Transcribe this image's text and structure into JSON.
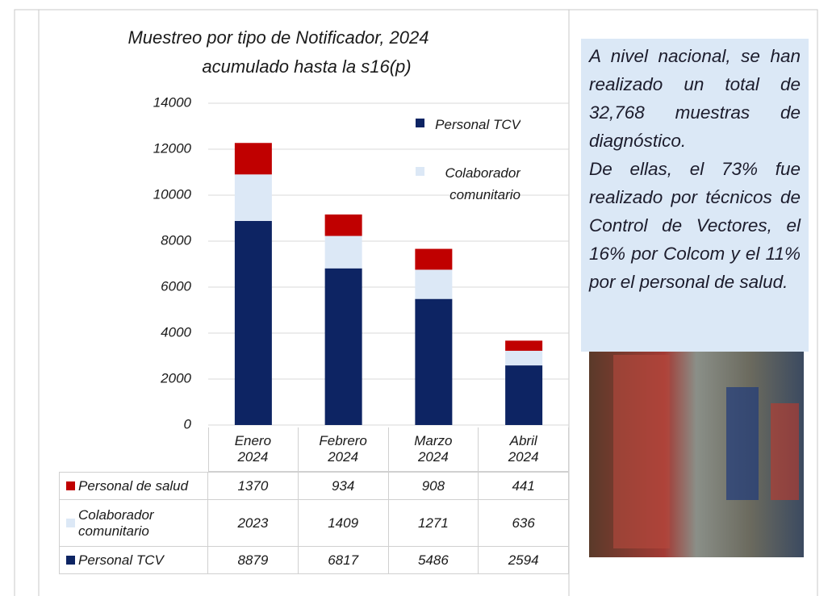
{
  "chart_data": {
    "type": "stacked_bar",
    "title": "Muestreo por tipo de Notificador, 2024",
    "subtitle": "acumulado hasta la s16(p)",
    "categories": [
      "Enero 2024",
      "Febrero 2024",
      "Marzo 2024",
      "Abril 2024"
    ],
    "series": [
      {
        "name": "Personal TCV",
        "color": "#0d2463",
        "values": [
          8879,
          6817,
          5486,
          2594
        ]
      },
      {
        "name": "Colaborador comunitario",
        "color": "#dce8f6",
        "values": [
          2023,
          1409,
          1271,
          636
        ]
      },
      {
        "name": "Personal de salud",
        "color": "#c00000",
        "values": [
          1370,
          934,
          908,
          441
        ]
      }
    ],
    "ylim": [
      0,
      14000
    ],
    "yticks": [
      0,
      2000,
      4000,
      6000,
      8000,
      10000,
      12000,
      14000
    ],
    "grid": true
  },
  "side_text": [
    "A nivel nacional, se han realizado un total de 32,768 muestras de diagnóstico.",
    "De ellas, el 73% fue realizado por técnicos de Control de Vectores, el 16% por Colcom y el 11% por el personal de salud."
  ]
}
